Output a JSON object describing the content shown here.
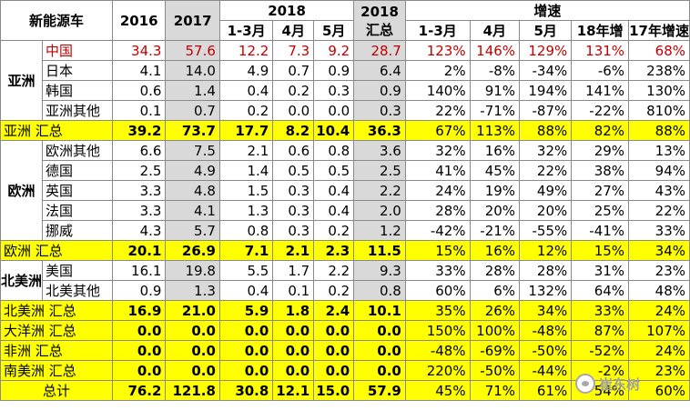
{
  "header": {
    "title": "新能源车",
    "y2016": "2016",
    "y2017": "2017",
    "y2018": "2018",
    "q1": "1-3月",
    "apr": "4月",
    "may": "5月",
    "y2018_total_top": "2018",
    "y2018_total_bottom": "汇总",
    "growth": "增速",
    "g_q1": "1-3月",
    "g_apr": "4月",
    "g_may": "5月",
    "g_18": "18年增",
    "g_17": "17年增速"
  },
  "regions": {
    "asia": "亚洲",
    "europe": "欧洲",
    "north_america": "北美洲"
  },
  "rows": [
    {
      "name": "中国",
      "v": [
        "34.3",
        "57.6",
        "12.2",
        "7.3",
        "9.2",
        "28.7",
        "123%",
        "146%",
        "129%",
        "131%",
        "68%"
      ]
    },
    {
      "name": "日本",
      "v": [
        "4.1",
        "14.0",
        "4.9",
        "0.7",
        "0.9",
        "6.4",
        "2%",
        "-8%",
        "-34%",
        "-6%",
        "238%"
      ]
    },
    {
      "name": "韩国",
      "v": [
        "0.6",
        "1.4",
        "0.4",
        "0.2",
        "0.3",
        "0.9",
        "140%",
        "91%",
        "194%",
        "141%",
        "130%"
      ]
    },
    {
      "name": "亚洲其他",
      "v": [
        "0.1",
        "0.7",
        "0.2",
        "0.0",
        "0.0",
        "0.3",
        "22%",
        "-71%",
        "-87%",
        "-22%",
        "810%"
      ]
    },
    {
      "name": "亚洲 汇总",
      "v": [
        "39.2",
        "73.7",
        "17.7",
        "8.2",
        "10.4",
        "36.3",
        "67%",
        "113%",
        "88%",
        "82%",
        "88%"
      ]
    },
    {
      "name": "欧洲其他",
      "v": [
        "6.6",
        "7.5",
        "2.1",
        "0.6",
        "0.8",
        "3.6",
        "32%",
        "16%",
        "32%",
        "29%",
        "13%"
      ]
    },
    {
      "name": "德国",
      "v": [
        "2.5",
        "4.9",
        "1.4",
        "0.5",
        "0.5",
        "2.5",
        "41%",
        "45%",
        "22%",
        "38%",
        "94%"
      ]
    },
    {
      "name": "英国",
      "v": [
        "3.3",
        "4.8",
        "1.5",
        "0.3",
        "0.4",
        "2.2",
        "24%",
        "19%",
        "49%",
        "27%",
        "43%"
      ]
    },
    {
      "name": "法国",
      "v": [
        "3.3",
        "4.1",
        "1.3",
        "0.3",
        "0.4",
        "2.0",
        "28%",
        "20%",
        "20%",
        "25%",
        "22%"
      ]
    },
    {
      "name": "挪威",
      "v": [
        "4.3",
        "5.7",
        "0.8",
        "0.3",
        "0.2",
        "1.2",
        "-42%",
        "-21%",
        "-55%",
        "-41%",
        "33%"
      ]
    },
    {
      "name": "欧洲 汇总",
      "v": [
        "20.1",
        "26.9",
        "7.1",
        "2.1",
        "2.3",
        "11.5",
        "15%",
        "16%",
        "12%",
        "15%",
        "34%"
      ]
    },
    {
      "name": "美国",
      "v": [
        "16.1",
        "19.8",
        "5.5",
        "1.7",
        "2.2",
        "9.3",
        "33%",
        "28%",
        "28%",
        "31%",
        "23%"
      ]
    },
    {
      "name": "北美其他",
      "v": [
        "0.9",
        "1.3",
        "0.4",
        "0.1",
        "0.2",
        "0.8",
        "60%",
        "6%",
        "132%",
        "64%",
        "48%"
      ]
    },
    {
      "name": "北美洲 汇总",
      "v": [
        "16.9",
        "21.0",
        "5.9",
        "1.8",
        "2.4",
        "10.1",
        "35%",
        "26%",
        "34%",
        "33%",
        "24%"
      ]
    },
    {
      "name": "大洋洲 汇总",
      "v": [
        "0.0",
        "0.0",
        "0.0",
        "0.0",
        "0.0",
        "0.0",
        "150%",
        "100%",
        "-48%",
        "87%",
        "107%"
      ]
    },
    {
      "name": "非洲 汇总",
      "v": [
        "0.0",
        "0.0",
        "0.0",
        "0.0",
        "0.0",
        "0.0",
        "-48%",
        "-69%",
        "-50%",
        "-52%",
        "24%"
      ]
    },
    {
      "name": "南美洲 汇总",
      "v": [
        "0.0",
        "0.0",
        "0.0",
        "0.0",
        "0.0",
        "0.0",
        "220%",
        "-50%",
        "-44%",
        "-2%",
        "23%"
      ]
    },
    {
      "name": "总计",
      "v": [
        "76.2",
        "121.8",
        "30.8",
        "12.1",
        "15.0",
        "57.9",
        "45%",
        "71%",
        "61%",
        "54%",
        "60%"
      ]
    }
  ],
  "watermark": {
    "text": "崔东树",
    "icon": "wechat-logo-icon"
  },
  "colors": {
    "highlight": "#ffff00",
    "gray": "#d9d9d9",
    "china_red": "#c00000"
  }
}
